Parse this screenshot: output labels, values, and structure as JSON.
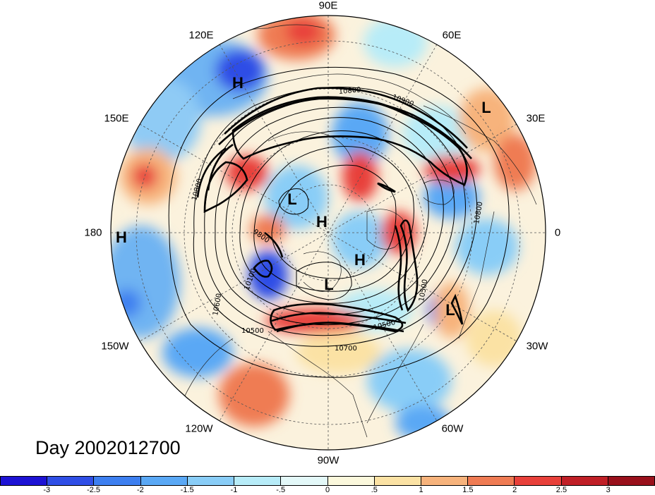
{
  "title": "Day 2002012700",
  "longitude_labels": [
    "90E",
    "60E",
    "30E",
    "0",
    "30W",
    "60W",
    "90W",
    "120W",
    "150W",
    "180",
    "150E",
    "120E"
  ],
  "pressure_centers": [
    "H",
    "L",
    "L",
    "L",
    "H",
    "H",
    "H",
    "L",
    "L"
  ],
  "contour_labels": [
    "10800",
    "10900",
    "10800",
    "9800",
    "10100",
    "10600",
    "10500",
    "10500",
    "10700",
    "10500",
    "10800"
  ],
  "colorbar": {
    "ticks": [
      "-3",
      "-2.5",
      "-2",
      "-1.5",
      "-1",
      "-.5",
      "0",
      ".5",
      "1",
      "1.5",
      "2",
      "2.5",
      "3"
    ],
    "colors": [
      "#1d12d4",
      "#2f4ee6",
      "#3d7ff0",
      "#5aa8f5",
      "#89cdf7",
      "#b7ecf8",
      "#e3f8f8",
      "#fbf8dc",
      "#fbe2a4",
      "#f7b37c",
      "#ef7b53",
      "#e8403a",
      "#c01f26",
      "#99101b"
    ]
  },
  "colors": {
    "contour": "#000000",
    "grid": "#555555"
  }
}
